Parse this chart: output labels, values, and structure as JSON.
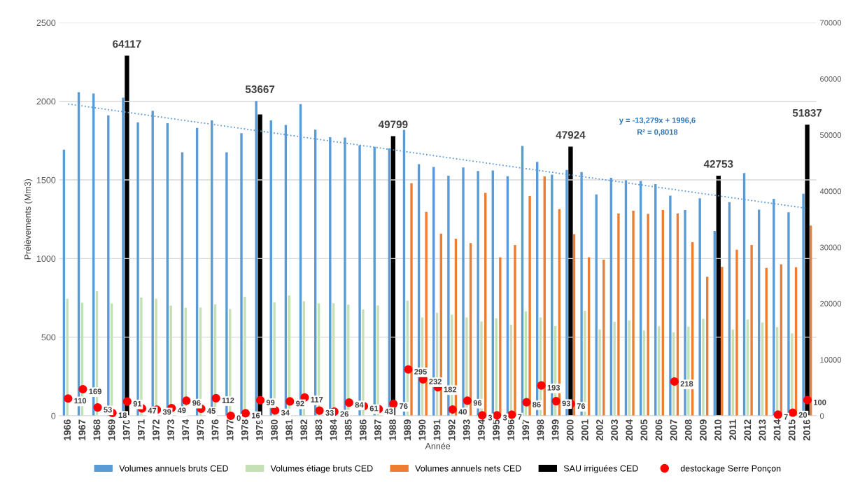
{
  "chart_data": {
    "type": "bar",
    "xlabel": "Année",
    "ylabel": "Prélèvements (Mm3)",
    "categories": [
      "1966",
      "1967",
      "1968",
      "1969",
      "1970",
      "1971",
      "1972",
      "1973",
      "1974",
      "1975",
      "1976",
      "1977",
      "1978",
      "1979",
      "1980",
      "1981",
      "1982",
      "1983",
      "1984",
      "1985",
      "1986",
      "1987",
      "1988",
      "1989",
      "1990",
      "1991",
      "1992",
      "1993",
      "1994",
      "1995",
      "1996",
      "1997",
      "1998",
      "1999",
      "2000",
      "2001",
      "2002",
      "2003",
      "2004",
      "2005",
      "2006",
      "2007",
      "2008",
      "2009",
      "2010",
      "2011",
      "2012",
      "2013",
      "2014",
      "2015",
      "2016"
    ],
    "ylim": [
      0,
      2500
    ],
    "yticks": [
      0,
      500,
      1000,
      1500,
      2000,
      2500
    ],
    "y2lim": [
      0,
      70000
    ],
    "y2ticks": [
      0,
      10000,
      20000,
      30000,
      40000,
      50000,
      60000,
      70000
    ],
    "grid": "y",
    "legend": "bottom",
    "series": [
      {
        "name": "Volumes annuels bruts CED",
        "color": "#5b9bd5",
        "values": [
          1693,
          2058,
          2050,
          1911,
          2023,
          1866,
          1940,
          1861,
          1676,
          1831,
          1879,
          1676,
          1797,
          2002,
          1879,
          1850,
          1982,
          1820,
          1772,
          1769,
          1721,
          1711,
          1700,
          1818,
          1600,
          1583,
          1527,
          1579,
          1557,
          1560,
          1524,
          1716,
          1615,
          1534,
          1564,
          1550,
          1408,
          1514,
          1498,
          1494,
          1474,
          1400,
          1309,
          1383,
          1175,
          1359,
          1544,
          1311,
          1380,
          1294,
          1412
        ]
      },
      {
        "name": "Volumes étiage bruts CED",
        "color": "#c5e0b4",
        "values": [
          744,
          719,
          792,
          714,
          null,
          752,
          745,
          701,
          688,
          689,
          709,
          679,
          757,
          null,
          722,
          765,
          729,
          716,
          716,
          707,
          676,
          702,
          null,
          732,
          626,
          655,
          643,
          626,
          600,
          620,
          580,
          664,
          626,
          570,
          null,
          668,
          549,
          598,
          607,
          542,
          569,
          531,
          567,
          617,
          null,
          549,
          612,
          593,
          564,
          524,
          null
        ]
      },
      {
        "name": "Volumes annuels nets CED",
        "color": "#ed7d31",
        "values": [
          null,
          null,
          null,
          null,
          null,
          null,
          null,
          null,
          null,
          null,
          null,
          null,
          null,
          null,
          null,
          null,
          null,
          null,
          null,
          null,
          null,
          null,
          null,
          1479,
          1296,
          1159,
          1126,
          1098,
          1418,
          1008,
          1086,
          1398,
          1522,
          1314,
          1155,
          1008,
          993,
          1286,
          1304,
          1284,
          1309,
          1286,
          1104,
          884,
          947,
          1056,
          1086,
          940,
          964,
          945,
          1210
        ]
      },
      {
        "name": "SAU irriguées CED",
        "axis": "y2",
        "color": "#000000",
        "values": [
          null,
          null,
          null,
          null,
          64117,
          null,
          null,
          null,
          null,
          null,
          null,
          null,
          null,
          53667,
          null,
          null,
          null,
          null,
          null,
          null,
          null,
          null,
          49799,
          null,
          null,
          null,
          null,
          null,
          null,
          null,
          null,
          null,
          null,
          null,
          47924,
          null,
          null,
          null,
          null,
          null,
          null,
          null,
          null,
          null,
          42753,
          null,
          null,
          null,
          null,
          null,
          51837
        ],
        "value_labels": [
          null,
          null,
          null,
          null,
          "64117",
          null,
          null,
          null,
          null,
          null,
          null,
          null,
          null,
          "53667",
          null,
          null,
          null,
          null,
          null,
          null,
          null,
          null,
          "49799",
          null,
          null,
          null,
          null,
          null,
          null,
          null,
          null,
          null,
          null,
          null,
          "47924",
          null,
          null,
          null,
          null,
          null,
          null,
          null,
          null,
          null,
          "42753",
          null,
          null,
          null,
          null,
          null,
          "51837"
        ]
      },
      {
        "name": "destockage Serre Ponçon",
        "type": "scatter",
        "marker": "circle",
        "color": "#ff0000",
        "values": [
          110,
          169,
          53,
          18,
          91,
          47,
          39,
          49,
          96,
          45,
          112,
          0,
          16,
          99,
          34,
          92,
          117,
          33,
          26,
          84,
          61,
          43,
          76,
          295,
          232,
          182,
          40,
          96,
          3,
          3,
          7,
          86,
          193,
          93,
          76,
          null,
          null,
          null,
          null,
          null,
          null,
          218,
          null,
          null,
          null,
          null,
          null,
          null,
          7,
          20,
          100
        ],
        "value_labels": [
          "110",
          "169",
          "53",
          "18",
          "91",
          "47",
          "39",
          "49",
          "96",
          "45",
          "112",
          "0",
          "16",
          "99",
          "34",
          "92",
          "117",
          "33",
          "26",
          "84",
          "61",
          "43",
          "76",
          "295",
          "232",
          "182",
          "40",
          "96",
          "3",
          "3",
          "7",
          "86",
          "193",
          "93",
          "76",
          null,
          null,
          null,
          null,
          null,
          null,
          "218",
          null,
          null,
          null,
          null,
          null,
          null,
          "7",
          "20",
          "100"
        ]
      },
      {
        "type": "line",
        "color": "#5b9bd5",
        "line_style": "dotted",
        "marker": "none",
        "values": [
          1983,
          null,
          null,
          null,
          null,
          null,
          null,
          null,
          null,
          null,
          null,
          null,
          null,
          null,
          null,
          null,
          null,
          null,
          null,
          null,
          null,
          null,
          null,
          null,
          null,
          null,
          null,
          null,
          null,
          null,
          null,
          null,
          null,
          null,
          null,
          null,
          null,
          null,
          null,
          null,
          null,
          null,
          null,
          null,
          null,
          null,
          null,
          null,
          null,
          null,
          1319
        ]
      }
    ],
    "annotations": [
      "y = -13,279x + 1996,6",
      "R² = 0,8018"
    ]
  }
}
